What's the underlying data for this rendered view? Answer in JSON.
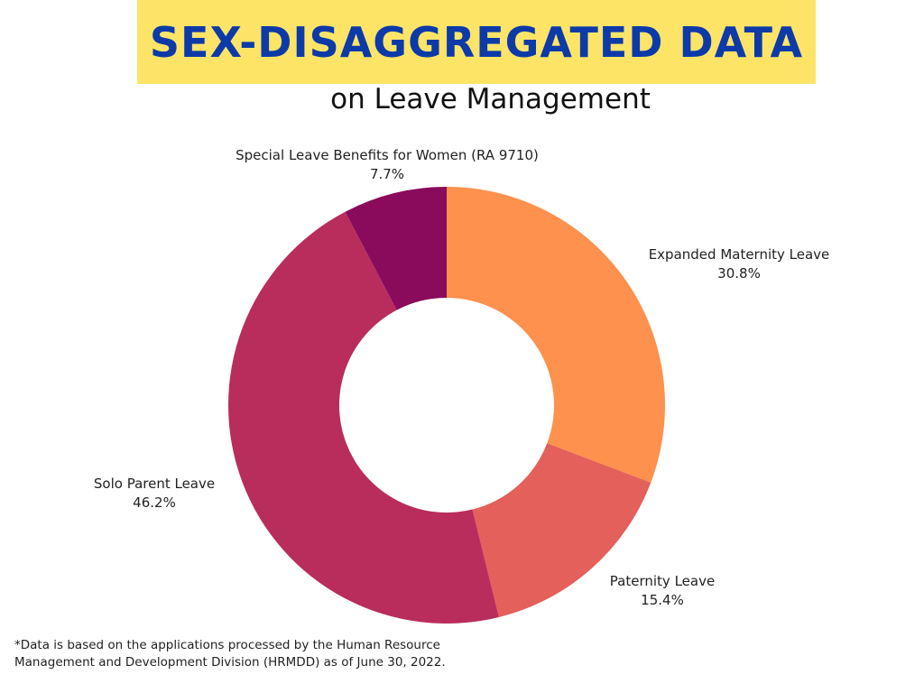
{
  "header": {
    "title": "SEX-DISAGGREGATED DATA",
    "subtitle": "on Leave Management"
  },
  "colors": {
    "banner": "#fde467",
    "title": "#0c3aa8"
  },
  "chart_data": {
    "type": "pie",
    "variant": "donut",
    "start_direction": "top",
    "order": "clockwise",
    "slices": [
      {
        "label": "Expanded Maternity Leave",
        "value": 30.8,
        "display": "30.8%",
        "color": "#fd914d"
      },
      {
        "label": "Paternity Leave",
        "value": 15.4,
        "display": "15.4%",
        "color": "#e4605b"
      },
      {
        "label": "Solo Parent Leave",
        "value": 46.2,
        "display": "46.2%",
        "color": "#b92d5d"
      },
      {
        "label": "Special Leave Benefits for Women (RA 9710)",
        "value": 7.7,
        "display": "7.7%",
        "color": "#8a0a5b"
      }
    ]
  },
  "footnote": {
    "line1": "*Data is based on the applications processed by the Human Resource",
    "line2": "Management and Development Division (HRMDD) as of June 30, 2022."
  }
}
